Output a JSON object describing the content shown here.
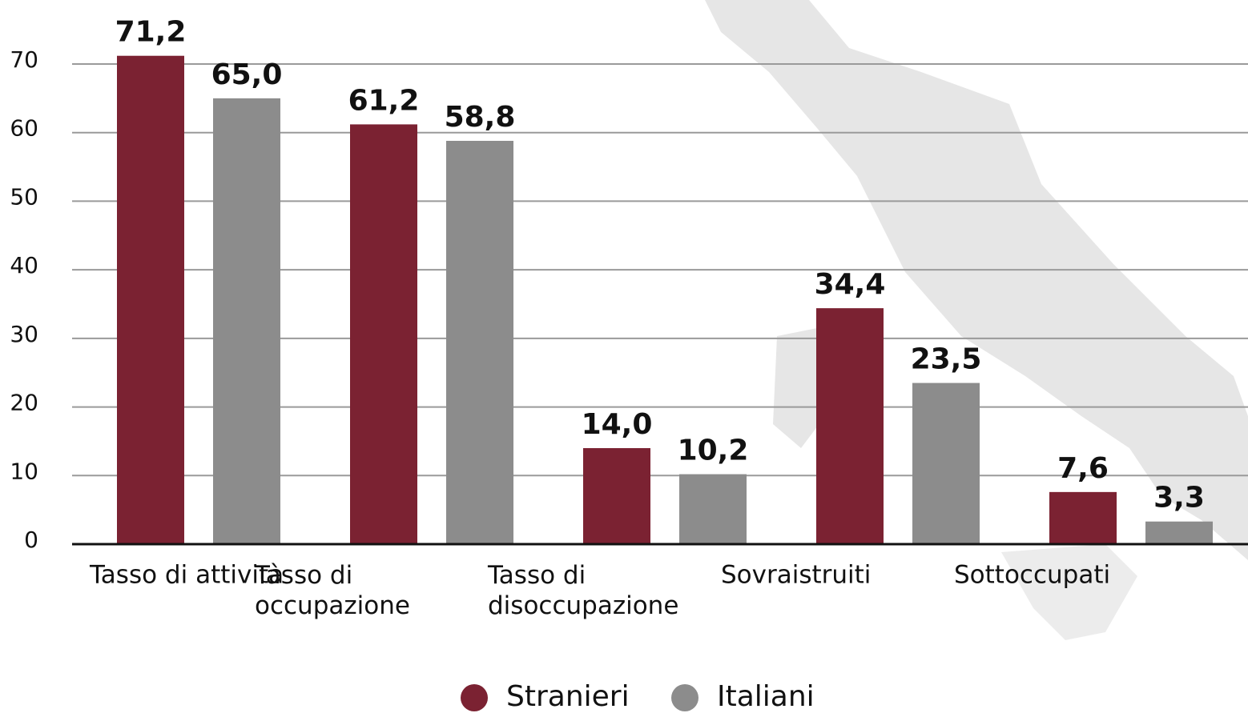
{
  "chart_data": {
    "type": "bar",
    "categories": [
      "Tasso di attività",
      "Tasso di\noccupazione",
      "Tasso di\ndisoccupazione",
      "Sovraistruiti",
      "Sottoccupati"
    ],
    "series": [
      {
        "name": "Stranieri",
        "color": "#7b2232",
        "values": [
          71.2,
          61.2,
          14.0,
          34.4,
          7.6
        ],
        "value_labels": [
          "71,2",
          "61,2",
          "14,0",
          "34,4",
          "7,6"
        ]
      },
      {
        "name": "Italiani",
        "color": "#8c8c8c",
        "values": [
          65.0,
          58.8,
          10.2,
          23.5,
          3.3
        ],
        "value_labels": [
          "65,0",
          "58,8",
          "10,2",
          "23,5",
          "3,3"
        ]
      }
    ],
    "ylim": [
      0,
      70
    ],
    "yticks": [
      0,
      10,
      20,
      30,
      40,
      50,
      60,
      70
    ],
    "grid": true,
    "legend": "bottom"
  }
}
